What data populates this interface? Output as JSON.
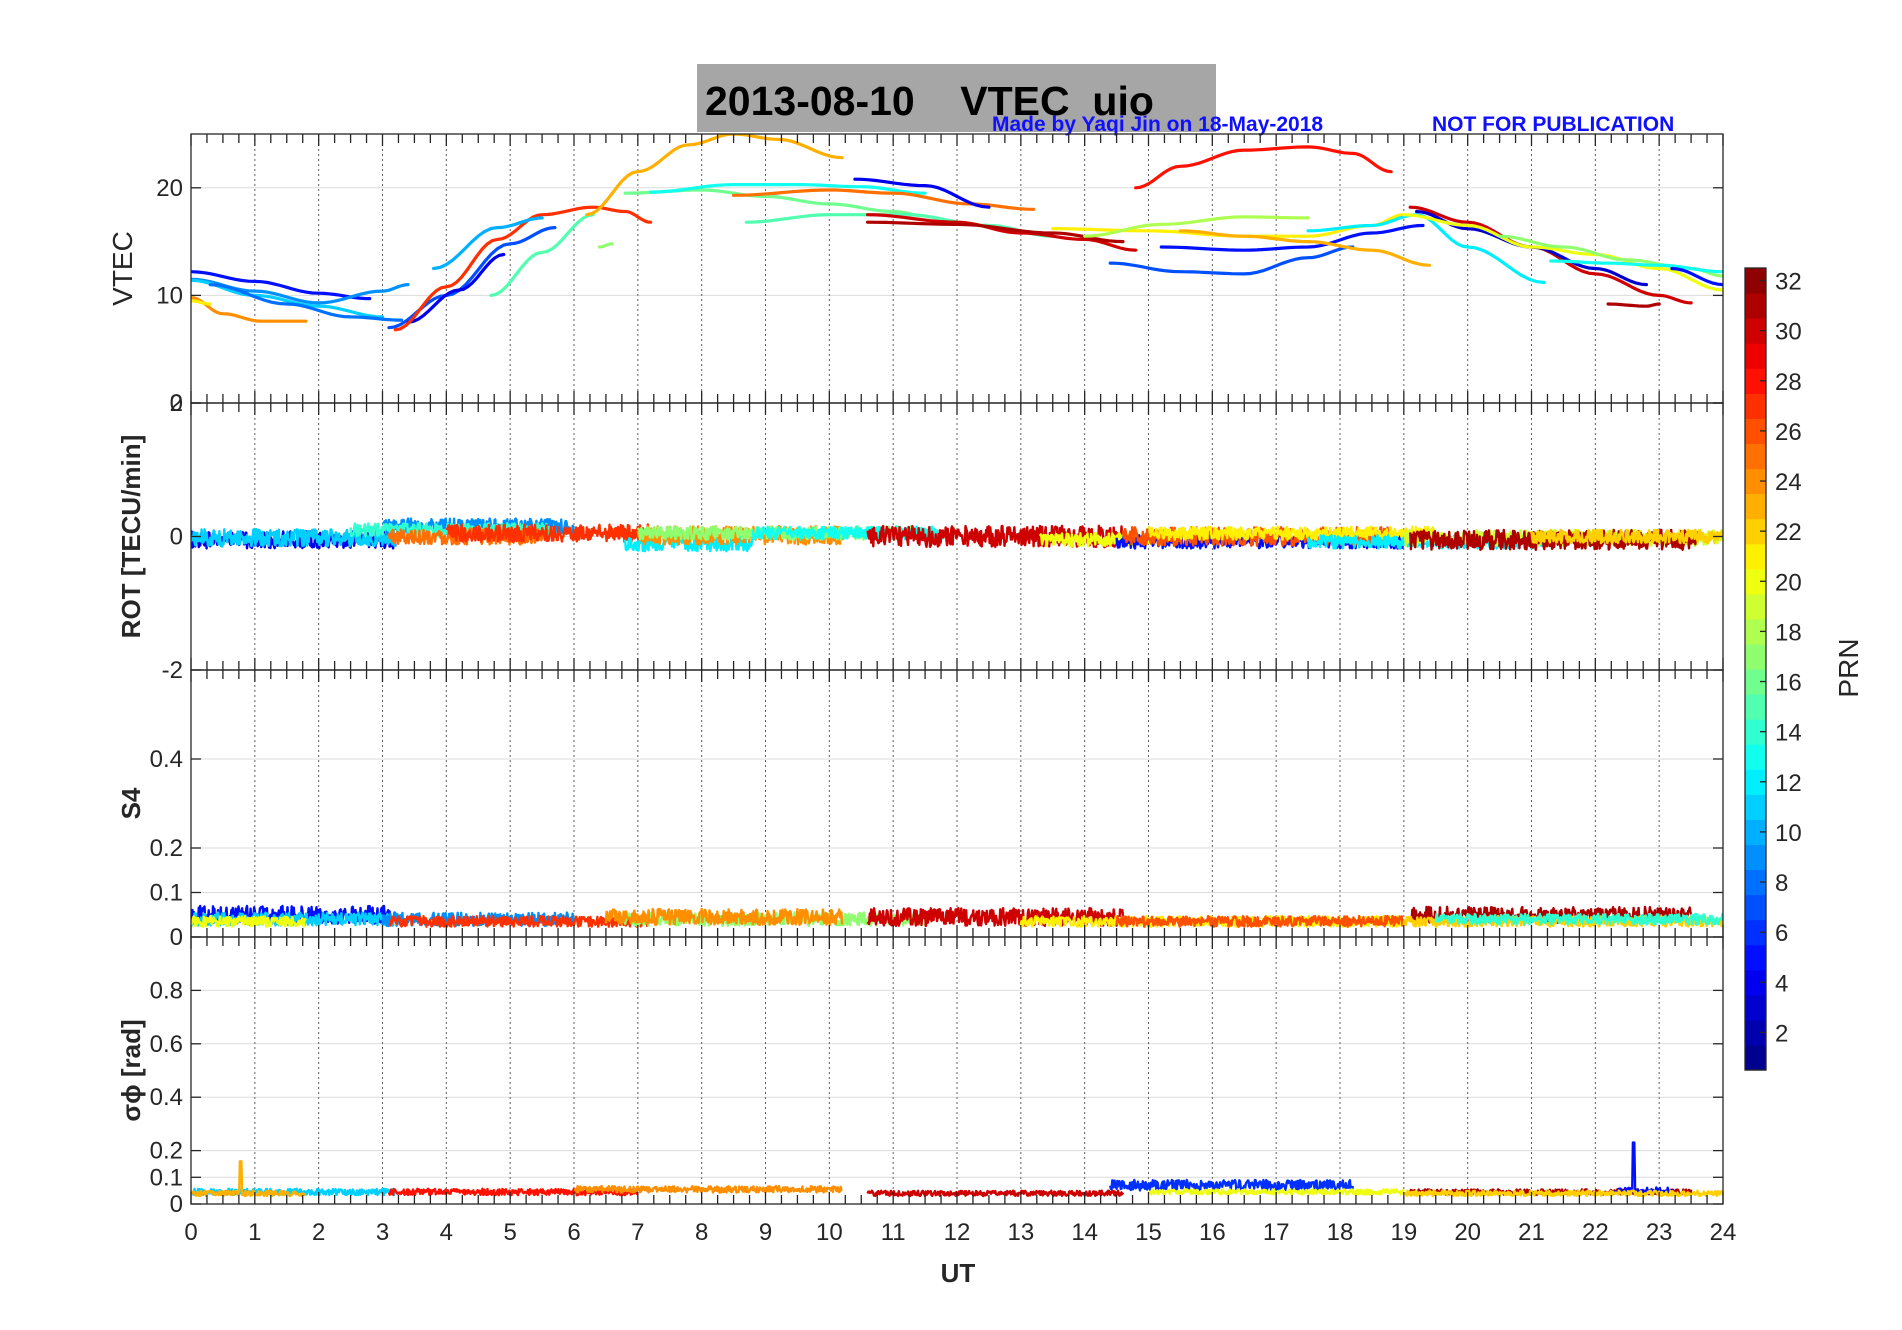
{
  "title": "2013-08-10    VTEC  uio",
  "credit": "Made by Yaqi Jin on 18-May-2018",
  "notice": "NOT FOR PUBLICATION",
  "chart_data": {
    "type": "line",
    "xlabel": "UT",
    "xlim": [
      0,
      24
    ],
    "x_ticks": [
      "0",
      "1",
      "2",
      "3",
      "4",
      "5",
      "6",
      "7",
      "8",
      "9",
      "10",
      "11",
      "12",
      "13",
      "14",
      "15",
      "16",
      "17",
      "18",
      "19",
      "20",
      "21",
      "22",
      "23",
      "24"
    ],
    "colorbar": {
      "label": "PRN",
      "range": [
        1,
        32
      ],
      "ticks": [
        "2",
        "4",
        "6",
        "8",
        "10",
        "12",
        "14",
        "16",
        "18",
        "20",
        "22",
        "24",
        "26",
        "28",
        "30",
        "32"
      ],
      "colormap": "jet"
    },
    "panels": [
      {
        "ylabel": "VTEC",
        "ylim": [
          0,
          25
        ],
        "y_ticks": [
          {
            "v": 0,
            "label": "0"
          },
          {
            "v": 10,
            "label": "10"
          },
          {
            "v": 20,
            "label": "20"
          }
        ],
        "series": [
          {
            "prn": 5,
            "x": [
              0,
              1,
              2,
              2.8
            ],
            "y": [
              12.2,
              11.3,
              10.2,
              9.7
            ]
          },
          {
            "prn": 9,
            "x": [
              0,
              1,
              2,
              3,
              3.4
            ],
            "y": [
              11.5,
              10.4,
              9.3,
              10.4,
              11
            ]
          },
          {
            "prn": 11,
            "x": [
              0,
              1,
              2,
              3
            ],
            "y": [
              11.4,
              10,
              9,
              8
            ]
          },
          {
            "prn": 8,
            "x": [
              0.3,
              1.5,
              2.5,
              3.3
            ],
            "y": [
              11,
              9.2,
              8,
              7.7
            ]
          },
          {
            "prn": 24,
            "x": [
              0,
              0.5,
              1.1,
              1.8
            ],
            "y": [
              9.8,
              8.3,
              7.6,
              7.6
            ]
          },
          {
            "prn": 21,
            "x": [
              0,
              0.3
            ],
            "y": [
              9.5,
              9.2
            ]
          },
          {
            "prn": 7,
            "x": [
              3.1,
              4,
              5,
              5.7
            ],
            "y": [
              7,
              10,
              14.8,
              16.3
            ]
          },
          {
            "prn": 4,
            "x": [
              3.4,
              4.2,
              4.9
            ],
            "y": [
              7.5,
              10.5,
              13.8
            ]
          },
          {
            "prn": 27,
            "x": [
              3.2,
              4,
              4.8,
              5.5,
              6.3,
              6.8,
              7.2
            ],
            "y": [
              6.8,
              10.8,
              15.2,
              17.5,
              18.2,
              17.8,
              16.8
            ]
          },
          {
            "prn": 10,
            "x": [
              3.8,
              4.8,
              5.5
            ],
            "y": [
              12.5,
              16.3,
              17.2
            ]
          },
          {
            "prn": 15,
            "x": [
              4.7,
              5.5,
              6.3
            ],
            "y": [
              10,
              14,
              17.5
            ]
          },
          {
            "prn": 23,
            "x": [
              6.2,
              7,
              7.8,
              8.5,
              9.2,
              10.2
            ],
            "y": [
              17.5,
              21.5,
              24,
              25,
              24.5,
              22.8
            ]
          },
          {
            "prn": 17,
            "x": [
              6.4,
              6.6
            ],
            "y": [
              14.5,
              14.8
            ]
          },
          {
            "prn": 16,
            "x": [
              6.8,
              8,
              9,
              10,
              11,
              11.5
            ],
            "y": [
              19.5,
              19.8,
              19.2,
              18.5,
              17.8,
              17.4
            ]
          },
          {
            "prn": 13,
            "x": [
              7.2,
              8.5,
              9.5,
              10.5,
              11.5
            ],
            "y": [
              19.6,
              20.3,
              20.3,
              20.1,
              19.5
            ]
          },
          {
            "prn": 15,
            "x": [
              8.7,
              10,
              11.2,
              12.5,
              13.5
            ],
            "y": [
              16.8,
              17.5,
              17.5,
              16.5,
              15.5
            ]
          },
          {
            "prn": 25,
            "x": [
              8.5,
              10,
              11,
              12.2,
              13.2
            ],
            "y": [
              19.3,
              19.8,
              19.5,
              18.5,
              18
            ]
          },
          {
            "prn": 4,
            "x": [
              10.4,
              11.5,
              12.5
            ],
            "y": [
              20.8,
              20.2,
              18.2
            ]
          },
          {
            "prn": 30,
            "x": [
              10.6,
              12,
              13,
              14,
              14.8
            ],
            "y": [
              17.5,
              16.8,
              15.8,
              15.2,
              14.2
            ]
          },
          {
            "prn": 31,
            "x": [
              10.6,
              12,
              13.5,
              14.6
            ],
            "y": [
              16.8,
              16.6,
              15.8,
              15
            ]
          },
          {
            "prn": 28,
            "x": [
              14.8,
              15.5,
              16.5,
              17.5,
              18.2,
              18.8
            ],
            "y": [
              20,
              22,
              23.5,
              23.8,
              23.2,
              21.5
            ]
          },
          {
            "prn": 7,
            "x": [
              14.4,
              15.5,
              16.5,
              17.5,
              18.2
            ],
            "y": [
              13,
              12.2,
              12,
              13.5,
              14.5
            ]
          },
          {
            "prn": 5,
            "x": [
              15.2,
              16.5,
              17.5,
              18.5,
              19.3
            ],
            "y": [
              14.5,
              14.2,
              14.5,
              15.8,
              16.5
            ]
          },
          {
            "prn": 21,
            "x": [
              13.5,
              15,
              16.5,
              17.5,
              18.5,
              19
            ],
            "y": [
              16.2,
              16,
              15.5,
              15.5,
              16.5,
              17.5
            ]
          },
          {
            "prn": 18,
            "x": [
              14,
              15.2,
              16.5,
              17.5
            ],
            "y": [
              15.5,
              16.6,
              17.3,
              17.2
            ]
          },
          {
            "prn": 23,
            "x": [
              15.5,
              16.5,
              17.5,
              18.5,
              19.4
            ],
            "y": [
              16,
              15.5,
              15,
              14.2,
              12.8
            ]
          },
          {
            "prn": 12,
            "x": [
              17.5,
              18.5,
              19.2,
              20,
              21.2
            ],
            "y": [
              16,
              16.5,
              17.5,
              14.5,
              11.2
            ]
          },
          {
            "prn": 30,
            "x": [
              19.1,
              20,
              21,
              22,
              23,
              23.5
            ],
            "y": [
              18.2,
              16.8,
              14.5,
              12,
              10,
              9.3
            ]
          },
          {
            "prn": 3,
            "x": [
              19.2,
              20,
              21,
              22,
              22.8
            ],
            "y": [
              17.8,
              16.2,
              14.5,
              12.5,
              11
            ]
          },
          {
            "prn": 20,
            "x": [
              19,
              20,
              21,
              22,
              23,
              24
            ],
            "y": [
              17.5,
              16.5,
              14.5,
              13.8,
              12.5,
              10.5
            ]
          },
          {
            "prn": 17,
            "x": [
              20.5,
              21.5,
              22.5,
              23.5,
              24
            ],
            "y": [
              15.5,
              14.5,
              13.3,
              12.5,
              11.8
            ]
          },
          {
            "prn": 13,
            "x": [
              21.3,
              22.2,
              23,
              24
            ],
            "y": [
              13.2,
              13,
              12.8,
              12.2
            ]
          },
          {
            "prn": 31,
            "x": [
              22.2,
              22.8,
              23
            ],
            "y": [
              9.2,
              9,
              9.2
            ]
          },
          {
            "prn": 5,
            "x": [
              23.2,
              24
            ],
            "y": [
              12.5,
              11
            ]
          }
        ]
      },
      {
        "ylabel": "ROT [TECU/min]",
        "ylim": [
          -2,
          2
        ],
        "y_ticks": [
          {
            "v": -2,
            "label": "-2"
          },
          {
            "v": 0,
            "label": "0"
          },
          {
            "v": 2,
            "label": "2"
          }
        ],
        "series": [
          {
            "prn": 4,
            "x0": 0,
            "x1": 3.2,
            "base": -0.05,
            "amp": 0.13
          },
          {
            "prn": 11,
            "x0": 0,
            "x1": 3.2,
            "base": -0.02,
            "amp": 0.13
          },
          {
            "prn": 9,
            "x0": 3.0,
            "x1": 6.0,
            "base": 0.15,
            "amp": 0.12
          },
          {
            "prn": 14,
            "x0": 2.5,
            "x1": 5.6,
            "base": 0.1,
            "amp": 0.1
          },
          {
            "prn": 25,
            "x0": 3.1,
            "x1": 5.6,
            "base": 0.0,
            "amp": 0.12
          },
          {
            "prn": 27,
            "x0": 4.0,
            "x1": 7.2,
            "base": 0.05,
            "amp": 0.13
          },
          {
            "prn": 12,
            "x0": 6.8,
            "x1": 8.8,
            "base": -0.1,
            "amp": 0.12
          },
          {
            "prn": 24,
            "x0": 7.0,
            "x1": 10.2,
            "base": 0.02,
            "amp": 0.14
          },
          {
            "prn": 17,
            "x0": 7.0,
            "x1": 11.5,
            "base": 0.05,
            "amp": 0.1
          },
          {
            "prn": 13,
            "x0": 8.8,
            "x1": 11.8,
            "base": 0.05,
            "amp": 0.1
          },
          {
            "prn": 30,
            "x0": 10.6,
            "x1": 14.6,
            "base": 0.0,
            "amp": 0.16
          },
          {
            "prn": 20,
            "x0": 13.3,
            "x1": 15.2,
            "base": -0.05,
            "amp": 0.1
          },
          {
            "prn": 5,
            "x0": 14.5,
            "x1": 19.0,
            "base": -0.08,
            "amp": 0.1
          },
          {
            "prn": 26,
            "x0": 14.6,
            "x1": 18.8,
            "base": 0.0,
            "amp": 0.14
          },
          {
            "prn": 21,
            "x0": 15.0,
            "x1": 19.5,
            "base": 0.05,
            "amp": 0.1
          },
          {
            "prn": 12,
            "x0": 17.5,
            "x1": 21.3,
            "base": -0.08,
            "amp": 0.1
          },
          {
            "prn": 19,
            "x0": 19.0,
            "x1": 24.0,
            "base": -0.02,
            "amp": 0.12
          },
          {
            "prn": 31,
            "x0": 19.1,
            "x1": 23.6,
            "base": -0.05,
            "amp": 0.15
          },
          {
            "prn": 22,
            "x0": 21.0,
            "x1": 24.0,
            "base": 0.0,
            "amp": 0.1
          }
        ]
      },
      {
        "ylabel": "S4",
        "ylim": [
          0,
          0.6
        ],
        "y_ticks": [
          {
            "v": 0,
            "label": "0"
          },
          {
            "v": 0.1,
            "label": "0.1"
          },
          {
            "v": 0.2,
            "label": "0.2"
          },
          {
            "v": 0.4,
            "label": "0.4"
          }
        ],
        "series": [
          {
            "prn": 5,
            "x0": 0,
            "x1": 3.2,
            "base": 0.05,
            "amp": 0.02
          },
          {
            "prn": 11,
            "x0": 0,
            "x1": 3.2,
            "base": 0.04,
            "amp": 0.015
          },
          {
            "prn": 20,
            "x0": 0,
            "x1": 1.8,
            "base": 0.035,
            "amp": 0.012
          },
          {
            "prn": 9,
            "x0": 3.0,
            "x1": 6.0,
            "base": 0.04,
            "amp": 0.015
          },
          {
            "prn": 27,
            "x0": 3.1,
            "x1": 7.2,
            "base": 0.035,
            "amp": 0.012
          },
          {
            "prn": 17,
            "x0": 6.8,
            "x1": 11.5,
            "base": 0.04,
            "amp": 0.015
          },
          {
            "prn": 24,
            "x0": 6.5,
            "x1": 10.2,
            "base": 0.045,
            "amp": 0.018
          },
          {
            "prn": 30,
            "x0": 10.6,
            "x1": 14.6,
            "base": 0.045,
            "amp": 0.02
          },
          {
            "prn": 21,
            "x0": 13.0,
            "x1": 19.0,
            "base": 0.035,
            "amp": 0.012
          },
          {
            "prn": 26,
            "x0": 14.5,
            "x1": 19.0,
            "base": 0.035,
            "amp": 0.012
          },
          {
            "prn": 31,
            "x0": 19.1,
            "x1": 23.5,
            "base": 0.05,
            "amp": 0.018
          },
          {
            "prn": 22,
            "x0": 19.0,
            "x1": 24.0,
            "base": 0.035,
            "amp": 0.012
          },
          {
            "prn": 14,
            "x0": 19.5,
            "x1": 24.0,
            "base": 0.04,
            "amp": 0.012
          }
        ]
      },
      {
        "ylabel": "σϕ [rad]",
        "ylim": [
          0,
          1
        ],
        "y_ticks": [
          {
            "v": 0,
            "label": "0"
          },
          {
            "v": 0.1,
            "label": "0.1"
          },
          {
            "v": 0.2,
            "label": "0.2"
          },
          {
            "v": 0.4,
            "label": "0.4"
          },
          {
            "v": 0.6,
            "label": "0.6"
          },
          {
            "v": 0.8,
            "label": "0.8"
          }
        ],
        "series": [
          {
            "prn": 11,
            "x0": 0,
            "x1": 3.2,
            "base": 0.045,
            "amp": 0.012
          },
          {
            "prn": 23,
            "x0": 0,
            "x1": 1.8,
            "base": 0.04,
            "amp": 0.01,
            "spike_x": 0.78,
            "spike_y": 0.16
          },
          {
            "prn": 28,
            "x0": 3.1,
            "x1": 7.0,
            "base": 0.045,
            "amp": 0.012
          },
          {
            "prn": 24,
            "x0": 6.0,
            "x1": 10.2,
            "base": 0.055,
            "amp": 0.012
          },
          {
            "prn": 30,
            "x0": 10.6,
            "x1": 14.6,
            "base": 0.04,
            "amp": 0.01
          },
          {
            "prn": 6,
            "x0": 14.4,
            "x1": 18.2,
            "base": 0.07,
            "amp": 0.02
          },
          {
            "prn": 20,
            "x0": 15.0,
            "x1": 19.0,
            "base": 0.045,
            "amp": 0.01
          },
          {
            "prn": 31,
            "x0": 19.1,
            "x1": 23.5,
            "base": 0.045,
            "amp": 0.01
          },
          {
            "prn": 5,
            "x0": 22.3,
            "x1": 23.2,
            "base": 0.05,
            "amp": 0.012,
            "spike_x": 22.6,
            "spike_y": 0.23
          },
          {
            "prn": 22,
            "x0": 19.0,
            "x1": 24.0,
            "base": 0.04,
            "amp": 0.01
          }
        ]
      }
    ]
  }
}
